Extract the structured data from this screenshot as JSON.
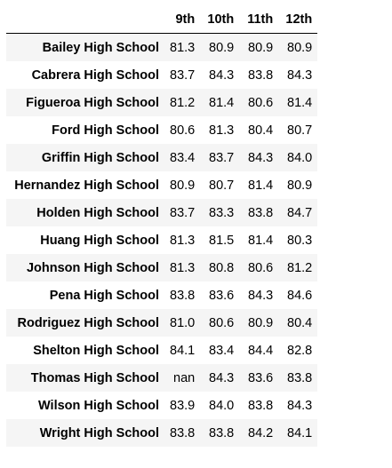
{
  "table": {
    "index_header": "",
    "columns": [
      "9th",
      "10th",
      "11th",
      "12th"
    ],
    "rows": [
      {
        "school": "Bailey High School",
        "values": [
          "81.3",
          "80.9",
          "80.9",
          "80.9"
        ]
      },
      {
        "school": "Cabrera High School",
        "values": [
          "83.7",
          "84.3",
          "83.8",
          "84.3"
        ]
      },
      {
        "school": "Figueroa High School",
        "values": [
          "81.2",
          "81.4",
          "80.6",
          "81.4"
        ]
      },
      {
        "school": "Ford High School",
        "values": [
          "80.6",
          "81.3",
          "80.4",
          "80.7"
        ]
      },
      {
        "school": "Griffin High School",
        "values": [
          "83.4",
          "83.7",
          "84.3",
          "84.0"
        ]
      },
      {
        "school": "Hernandez High School",
        "values": [
          "80.9",
          "80.7",
          "81.4",
          "80.9"
        ]
      },
      {
        "school": "Holden High School",
        "values": [
          "83.7",
          "83.3",
          "83.8",
          "84.7"
        ]
      },
      {
        "school": "Huang High School",
        "values": [
          "81.3",
          "81.5",
          "81.4",
          "80.3"
        ]
      },
      {
        "school": "Johnson High School",
        "values": [
          "81.3",
          "80.8",
          "80.6",
          "81.2"
        ]
      },
      {
        "school": "Pena High School",
        "values": [
          "83.8",
          "83.6",
          "84.3",
          "84.6"
        ]
      },
      {
        "school": "Rodriguez High School",
        "values": [
          "81.0",
          "80.6",
          "80.9",
          "80.4"
        ]
      },
      {
        "school": "Shelton High School",
        "values": [
          "84.1",
          "83.4",
          "84.4",
          "82.8"
        ]
      },
      {
        "school": "Thomas High School",
        "values": [
          "nan",
          "84.3",
          "83.6",
          "83.8"
        ]
      },
      {
        "school": "Wilson High School",
        "values": [
          "83.9",
          "84.0",
          "83.8",
          "84.3"
        ]
      },
      {
        "school": "Wright High School",
        "values": [
          "83.8",
          "83.8",
          "84.2",
          "84.1"
        ]
      }
    ]
  }
}
